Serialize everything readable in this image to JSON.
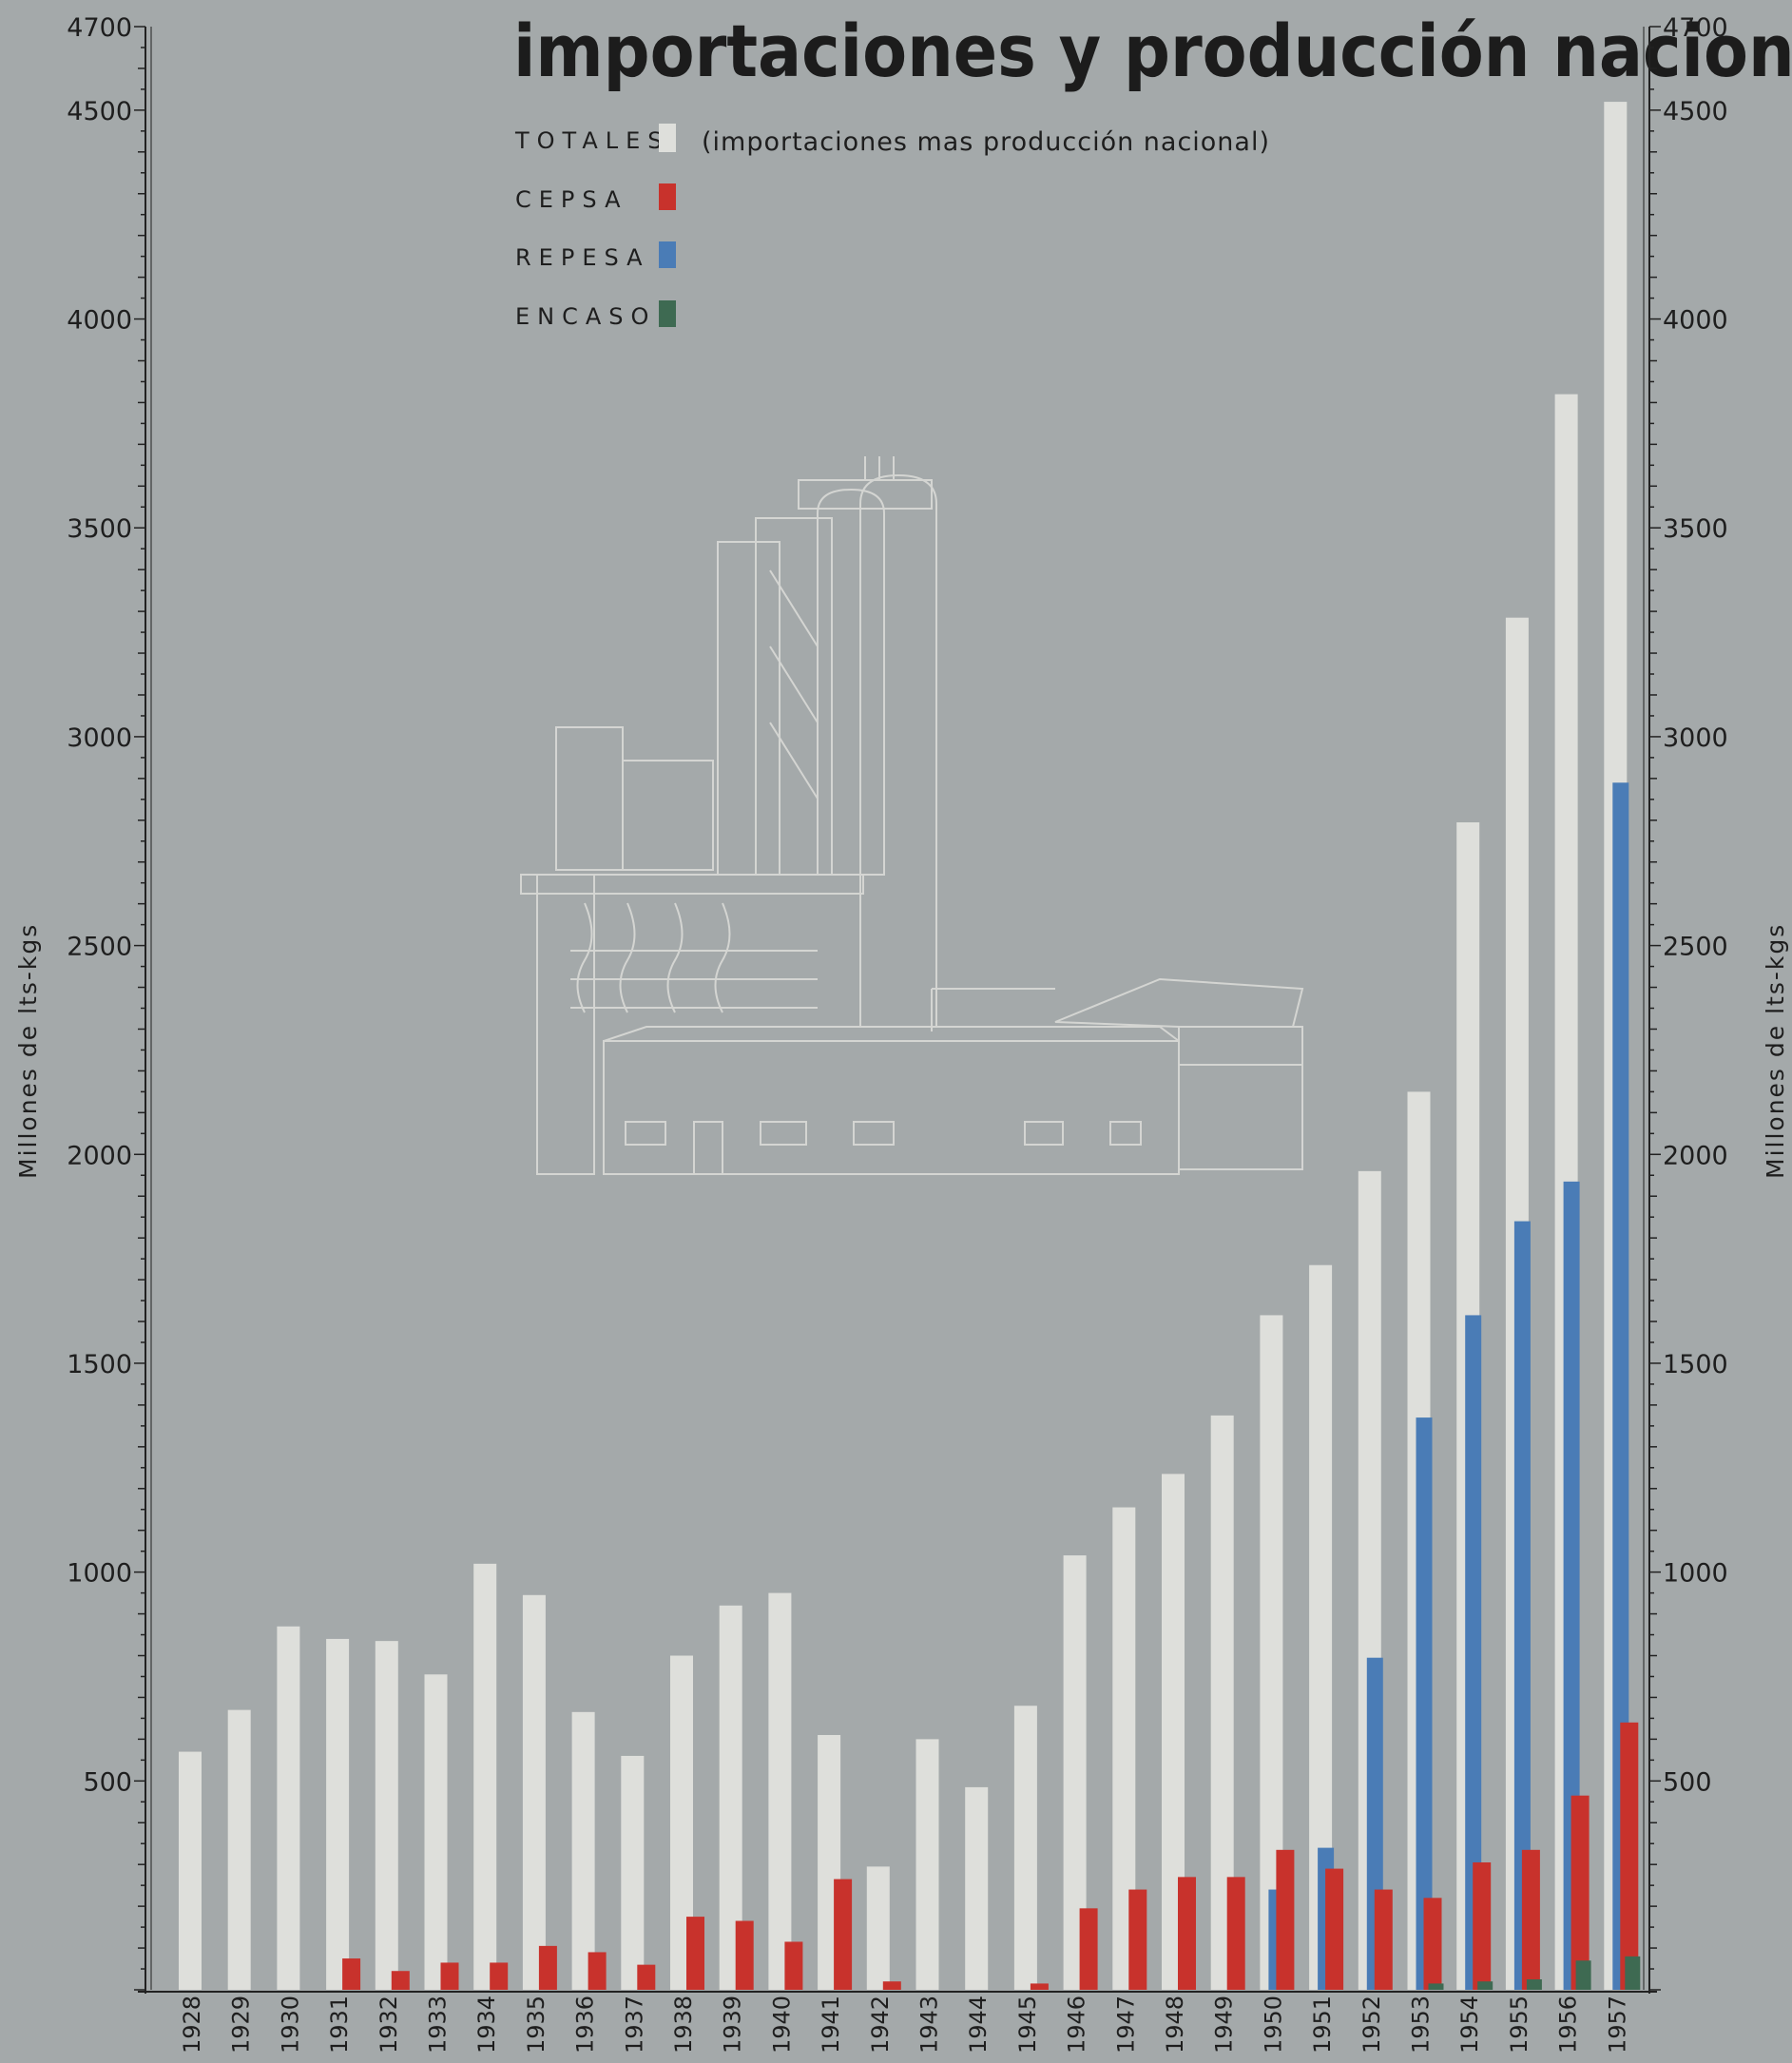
{
  "chart_data": {
    "type": "bar",
    "title": "importaciones y producción nacional",
    "ylabel": "Millones de lts-kgs",
    "ylabel_right": "Millones de lts-kgs",
    "ylim": [
      0,
      4700
    ],
    "yticks": [
      500,
      1000,
      1500,
      2000,
      2500,
      3000,
      3500,
      4000,
      4500,
      4700
    ],
    "grid": false,
    "legend_position": "top-center",
    "legend_note": "(importaciones mas producción nacional)",
    "categories": [
      "1928",
      "1929",
      "1930",
      "1931",
      "1932",
      "1933",
      "1934",
      "1935",
      "1936",
      "1937",
      "1938",
      "1939",
      "1940",
      "1941",
      "1942",
      "1943",
      "1944",
      "1945",
      "1946",
      "1947",
      "1948",
      "1949",
      "1950",
      "1951",
      "1952",
      "1953",
      "1954",
      "1955",
      "1956",
      "1957"
    ],
    "series": [
      {
        "name": "TOTALES",
        "color": "#dedfdb",
        "values": [
          570,
          670,
          870,
          840,
          835,
          755,
          1020,
          945,
          665,
          560,
          800,
          920,
          950,
          610,
          295,
          600,
          485,
          680,
          1040,
          1155,
          1235,
          1375,
          1615,
          1735,
          1960,
          2150,
          2795,
          3285,
          3820,
          4520
        ]
      },
      {
        "name": "CEPSA",
        "color": "#c8322c",
        "values": [
          0,
          0,
          0,
          75,
          45,
          65,
          65,
          105,
          90,
          60,
          175,
          165,
          115,
          265,
          20,
          0,
          0,
          15,
          195,
          240,
          270,
          270,
          335,
          290,
          240,
          220,
          305,
          335,
          465,
          640
        ]
      },
      {
        "name": "REPESA",
        "color": "#4a7cb6",
        "values": [
          0,
          0,
          0,
          0,
          0,
          0,
          0,
          0,
          0,
          0,
          0,
          0,
          0,
          0,
          0,
          0,
          0,
          0,
          0,
          0,
          0,
          0,
          240,
          340,
          795,
          1370,
          1615,
          1840,
          1935,
          2890
        ]
      },
      {
        "name": "ENCASO",
        "color": "#3e6a52",
        "values": [
          0,
          0,
          0,
          0,
          0,
          0,
          0,
          0,
          0,
          0,
          0,
          0,
          0,
          0,
          0,
          0,
          0,
          0,
          0,
          0,
          0,
          0,
          0,
          0,
          0,
          15,
          20,
          25,
          70,
          80
        ]
      }
    ]
  }
}
